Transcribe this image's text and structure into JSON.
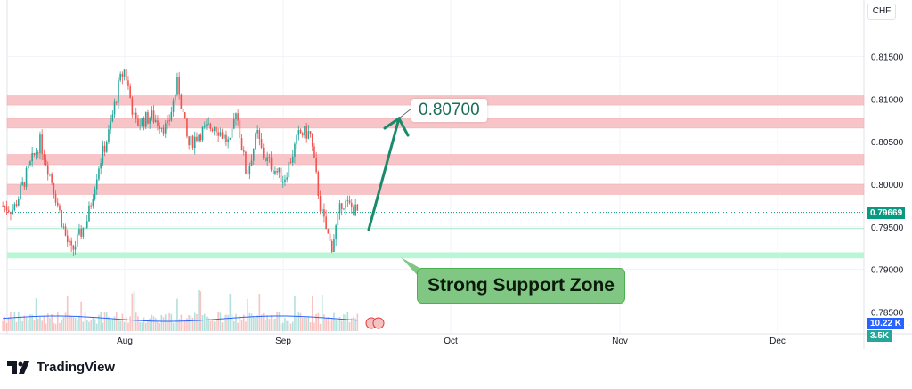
{
  "header": {
    "currency": "CHF"
  },
  "chart_data": {
    "type": "candlestick",
    "title": "",
    "price_axis": {
      "ticks": [
        "0.81500",
        "0.81000",
        "0.80500",
        "0.80000",
        "0.79500",
        "0.79000",
        "0.78500"
      ],
      "range": [
        0.7845,
        0.8175
      ]
    },
    "time_axis": {
      "ticks": [
        "Aug",
        "Sep",
        "Oct",
        "Nov",
        "Dec"
      ]
    },
    "last_price": "0.79669",
    "last_price_color": "#089981",
    "volume_label": "10.22 K",
    "volume_ma_label": "3.5K",
    "price_path": [
      [
        "Jul 9",
        0.7975
      ],
      [
        "Jul 11",
        0.797
      ],
      [
        "Jul 14",
        0.802
      ],
      [
        "Jul 16",
        0.805
      ],
      [
        "Jul 18",
        0.801
      ],
      [
        "Jul 21",
        0.7935
      ],
      [
        "Jul 22",
        0.792
      ],
      [
        "Jul 25",
        0.796
      ],
      [
        "Jul 27",
        0.802
      ],
      [
        "Jul 29",
        0.806
      ],
      [
        "Jul 31",
        0.812
      ],
      [
        "Aug 1",
        0.8135
      ],
      [
        "Aug 3",
        0.807
      ],
      [
        "Aug 6",
        0.808
      ],
      [
        "Aug 9",
        0.8065
      ],
      [
        "Aug 11",
        0.812
      ],
      [
        "Aug 13",
        0.8045
      ],
      [
        "Aug 15",
        0.806
      ],
      [
        "Aug 18",
        0.807
      ],
      [
        "Aug 21",
        0.8045
      ],
      [
        "Aug 22",
        0.809
      ],
      [
        "Aug 24",
        0.801
      ],
      [
        "Aug 26",
        0.806
      ],
      [
        "Aug 27",
        0.8035
      ],
      [
        "Aug 31",
        0.8005
      ],
      [
        "Sep 3",
        0.806
      ],
      [
        "Sep 5",
        0.806
      ],
      [
        "Sep 7",
        0.797
      ],
      [
        "Sep 9",
        0.7925
      ],
      [
        "Sep 11",
        0.798
      ],
      [
        "Sep 14",
        0.7967
      ]
    ],
    "resistance_zones": [
      [
        0.8093,
        0.8104
      ],
      [
        0.8066,
        0.8077
      ],
      [
        0.8023,
        0.8035
      ],
      [
        0.7988,
        0.8
      ]
    ],
    "support_zone": [
      0.7913,
      0.792
    ],
    "support_line": 0.7948,
    "zone_colors": {
      "resistance": "#f7c5c8",
      "support": "#b9f6d6",
      "arrow": "#1b8a6b",
      "up": "#26a69a",
      "down": "#ef5350"
    },
    "annotations": {
      "target": "0.80700",
      "support_label": "Strong Support Zone"
    }
  },
  "branding": {
    "name": "TradingView"
  }
}
